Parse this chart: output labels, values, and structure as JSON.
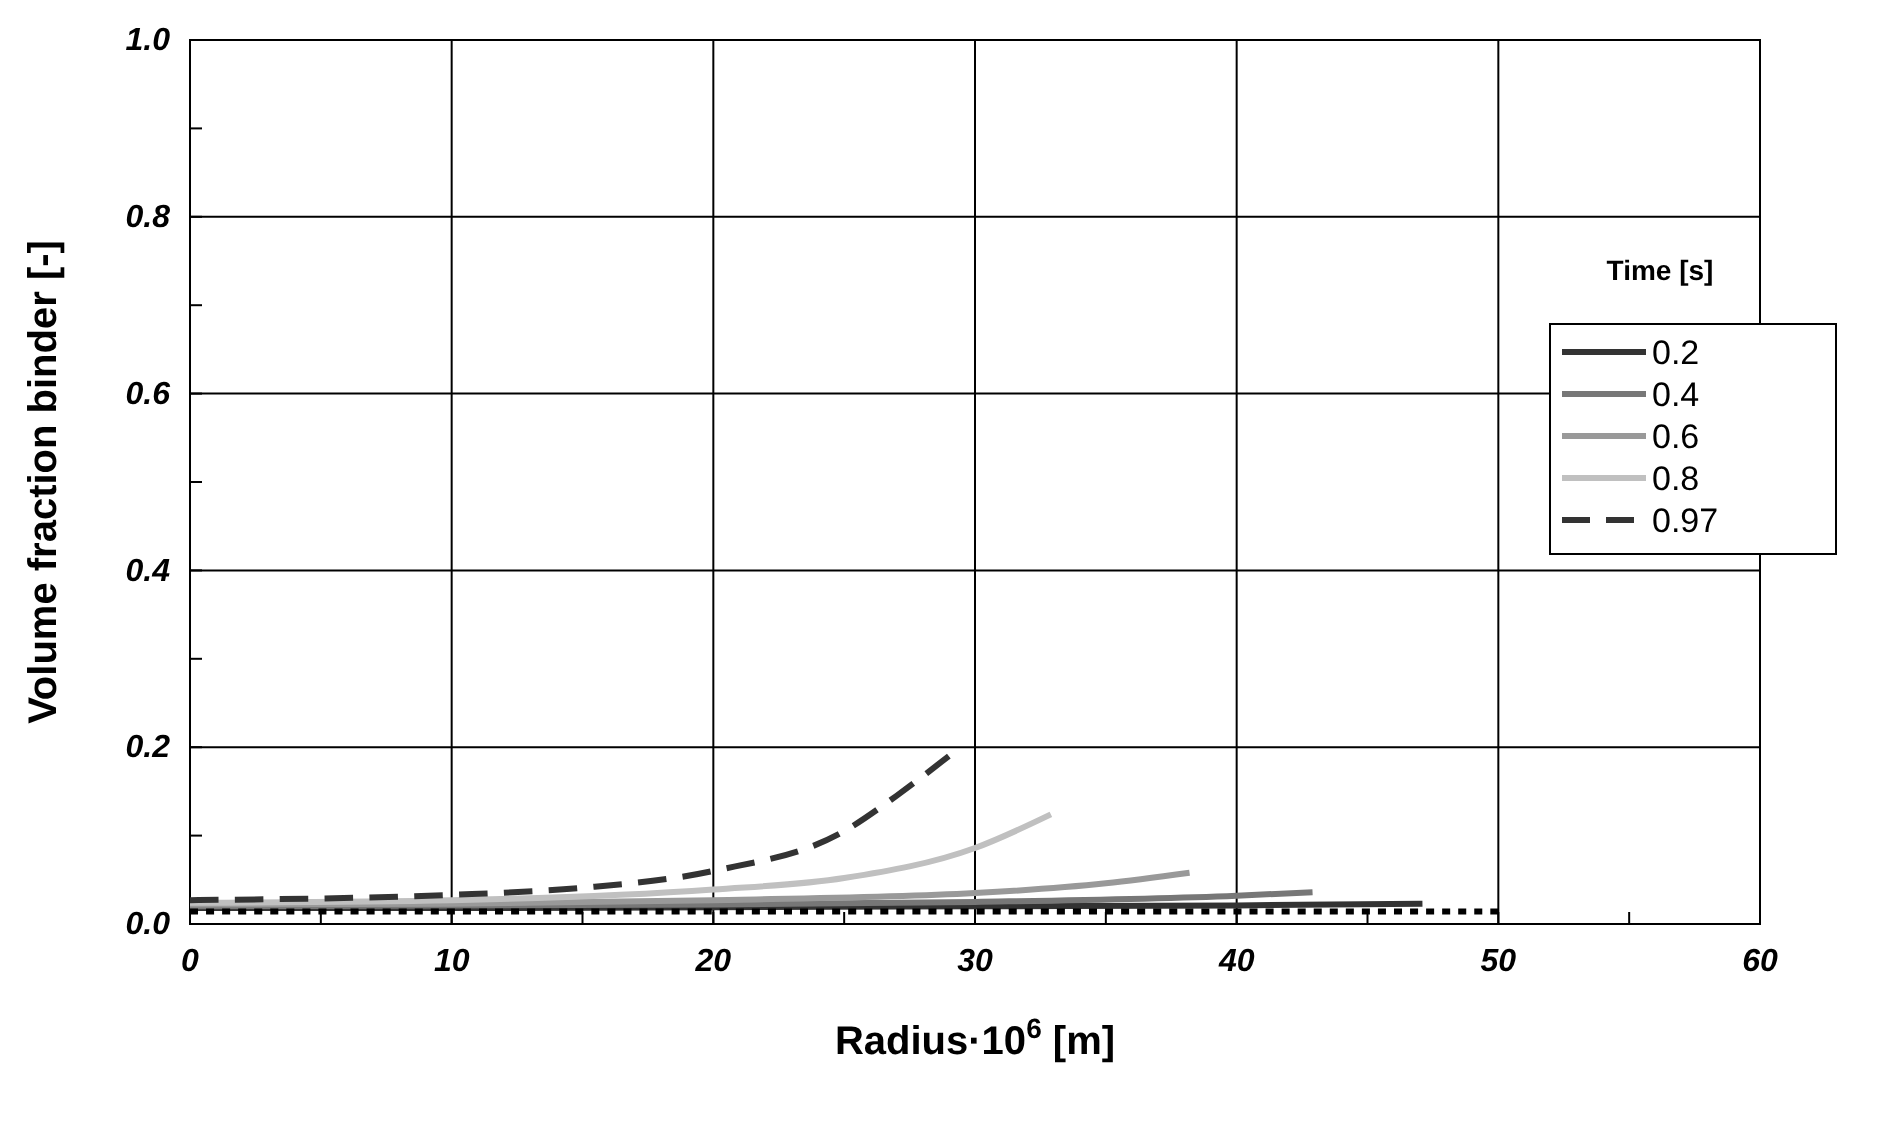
{
  "chart_data": {
    "type": "line",
    "xlabel": "Radius·10$^{6}$ [m]",
    "ylabel": "Volume fraction binder [-]",
    "legend_title": "Time [s]",
    "xlim": [
      0,
      60
    ],
    "ylim": [
      0,
      1
    ],
    "xticks": [
      0,
      {
        "value": 5,
        "label": null
      },
      10,
      {
        "value": 15,
        "label": null
      },
      20,
      {
        "value": 25,
        "label": null
      },
      30,
      {
        "value": 35,
        "label": null
      },
      40,
      {
        "value": 45,
        "label": null
      },
      50,
      {
        "value": 55,
        "label": null
      },
      60
    ],
    "yticks": [
      {
        "value": 0,
        "label": "0.0"
      },
      {
        "value": 0.1,
        "label": null
      },
      {
        "value": 0.2,
        "label": "0.2"
      },
      {
        "value": 0.3,
        "label": null
      },
      {
        "value": 0.4,
        "label": "0.4"
      },
      {
        "value": 0.5,
        "label": null
      },
      {
        "value": 0.6,
        "label": "0.6"
      },
      {
        "value": 0.7,
        "label": null
      },
      {
        "value": 0.8,
        "label": "0.8"
      },
      {
        "value": 0.9,
        "label": null
      },
      {
        "value": 1,
        "label": "1.0"
      }
    ],
    "grid": true,
    "legend": "top right",
    "marker": "none",
    "series": [
      {
        "name": "0.2",
        "color": "#333333",
        "line_style": "solid",
        "x": [
          0,
          10,
          20,
          30,
          40,
          47.1
        ],
        "values": [
          0.018,
          0.018,
          0.019,
          0.02,
          0.021,
          0.023
        ]
      },
      {
        "name": "0.4",
        "color": "#777777",
        "line_style": "solid",
        "x": [
          0,
          10,
          20,
          30,
          40,
          42.9
        ],
        "values": [
          0.02,
          0.021,
          0.022,
          0.025,
          0.032,
          0.036
        ]
      },
      {
        "name": "0.6",
        "color": "#999999",
        "line_style": "solid",
        "x": [
          0,
          10,
          20,
          30,
          35,
          38.2
        ],
        "values": [
          0.022,
          0.023,
          0.027,
          0.035,
          0.046,
          0.058
        ]
      },
      {
        "name": "0.8",
        "color": "#c0c0c0",
        "line_style": "solid",
        "x": [
          0,
          10,
          20,
          25,
          30,
          32.9
        ],
        "values": [
          0.024,
          0.027,
          0.039,
          0.052,
          0.086,
          0.124
        ]
      },
      {
        "name": "0.97",
        "color": "#333333",
        "line_style": "dashed",
        "x": [
          0,
          10,
          15,
          20,
          25,
          27,
          29
        ],
        "values": [
          0.027,
          0.033,
          0.041,
          0.06,
          0.105,
          0.145,
          0.19
        ]
      },
      {
        "color": "#000000",
        "line_style": "dotted",
        "x": [
          0,
          50
        ],
        "values": [
          0.014,
          0.014
        ]
      }
    ]
  }
}
